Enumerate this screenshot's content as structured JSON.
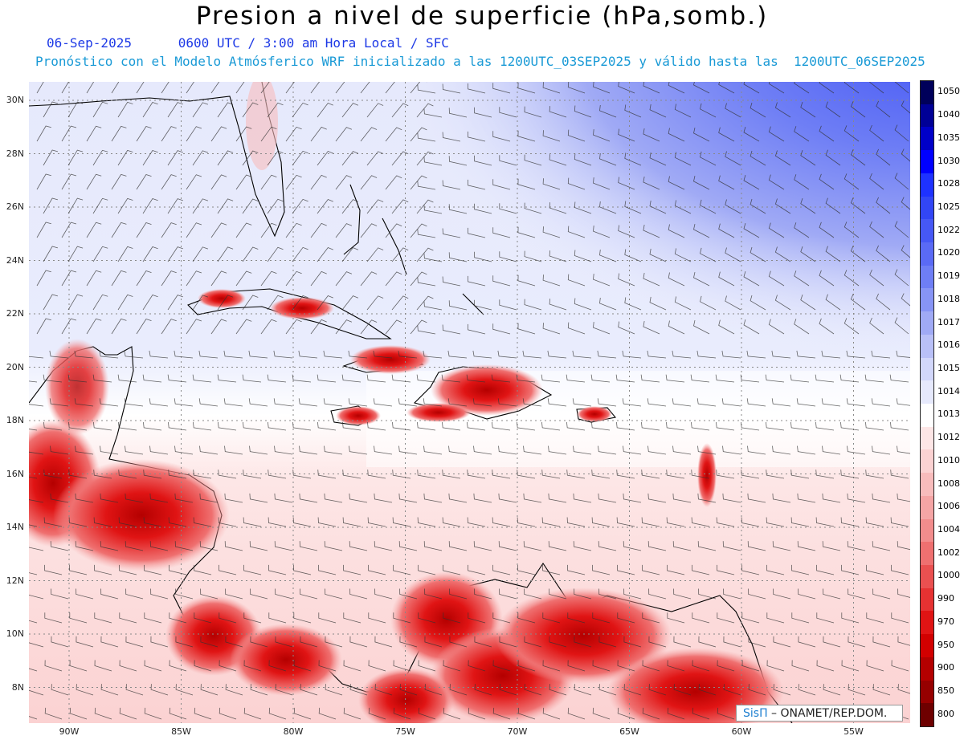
{
  "header": {
    "title": "Presion a nivel de superficie (hPa,somb.)",
    "date_line": "06-Sep-2025      0600 UTC / 3:00 am Hora Local / SFC",
    "forecast_line": "Pronóstico con el Modelo Atmósferico WRF inicializado a las 1200UTC_03SEP2025 y válido hasta las  1200UTC_06SEP2025"
  },
  "map": {
    "lat_labels": [
      "30N",
      "28N",
      "26N",
      "24N",
      "22N",
      "20N",
      "18N",
      "16N",
      "14N",
      "12N",
      "10N",
      "8N"
    ],
    "lon_labels": [
      "90W",
      "85W",
      "80W",
      "75W",
      "70W",
      "65W",
      "60W",
      "55W"
    ],
    "credit": {
      "brand": "SisΠ",
      "text": " – ONAMET/REP.DOM."
    }
  },
  "colorbar": {
    "labels": [
      "1050",
      "1040",
      "1035",
      "1030",
      "1028",
      "1025",
      "1022",
      "1020",
      "1019",
      "1018",
      "1017",
      "1016",
      "1015",
      "1014",
      "1013",
      "1012",
      "1010",
      "1008",
      "1006",
      "1004",
      "1002",
      "1000",
      "990",
      "970",
      "950",
      "900",
      "850",
      "800"
    ],
    "colors": [
      "#00005a",
      "#000096",
      "#0000c8",
      "#0000ff",
      "#1e32ff",
      "#3246f5",
      "#4658f5",
      "#5a6af5",
      "#6e7ef5",
      "#8794f5",
      "#a0aaf5",
      "#b9c0f7",
      "#d2d7fa",
      "#e6e9fc",
      "#ffffff",
      "#fde6e6",
      "#fbd2d2",
      "#f8bcbc",
      "#f5a5a5",
      "#f28c8c",
      "#ef7070",
      "#ea5050",
      "#e63232",
      "#e01414",
      "#d20000",
      "#b40000",
      "#960000",
      "#6e0000"
    ]
  }
}
